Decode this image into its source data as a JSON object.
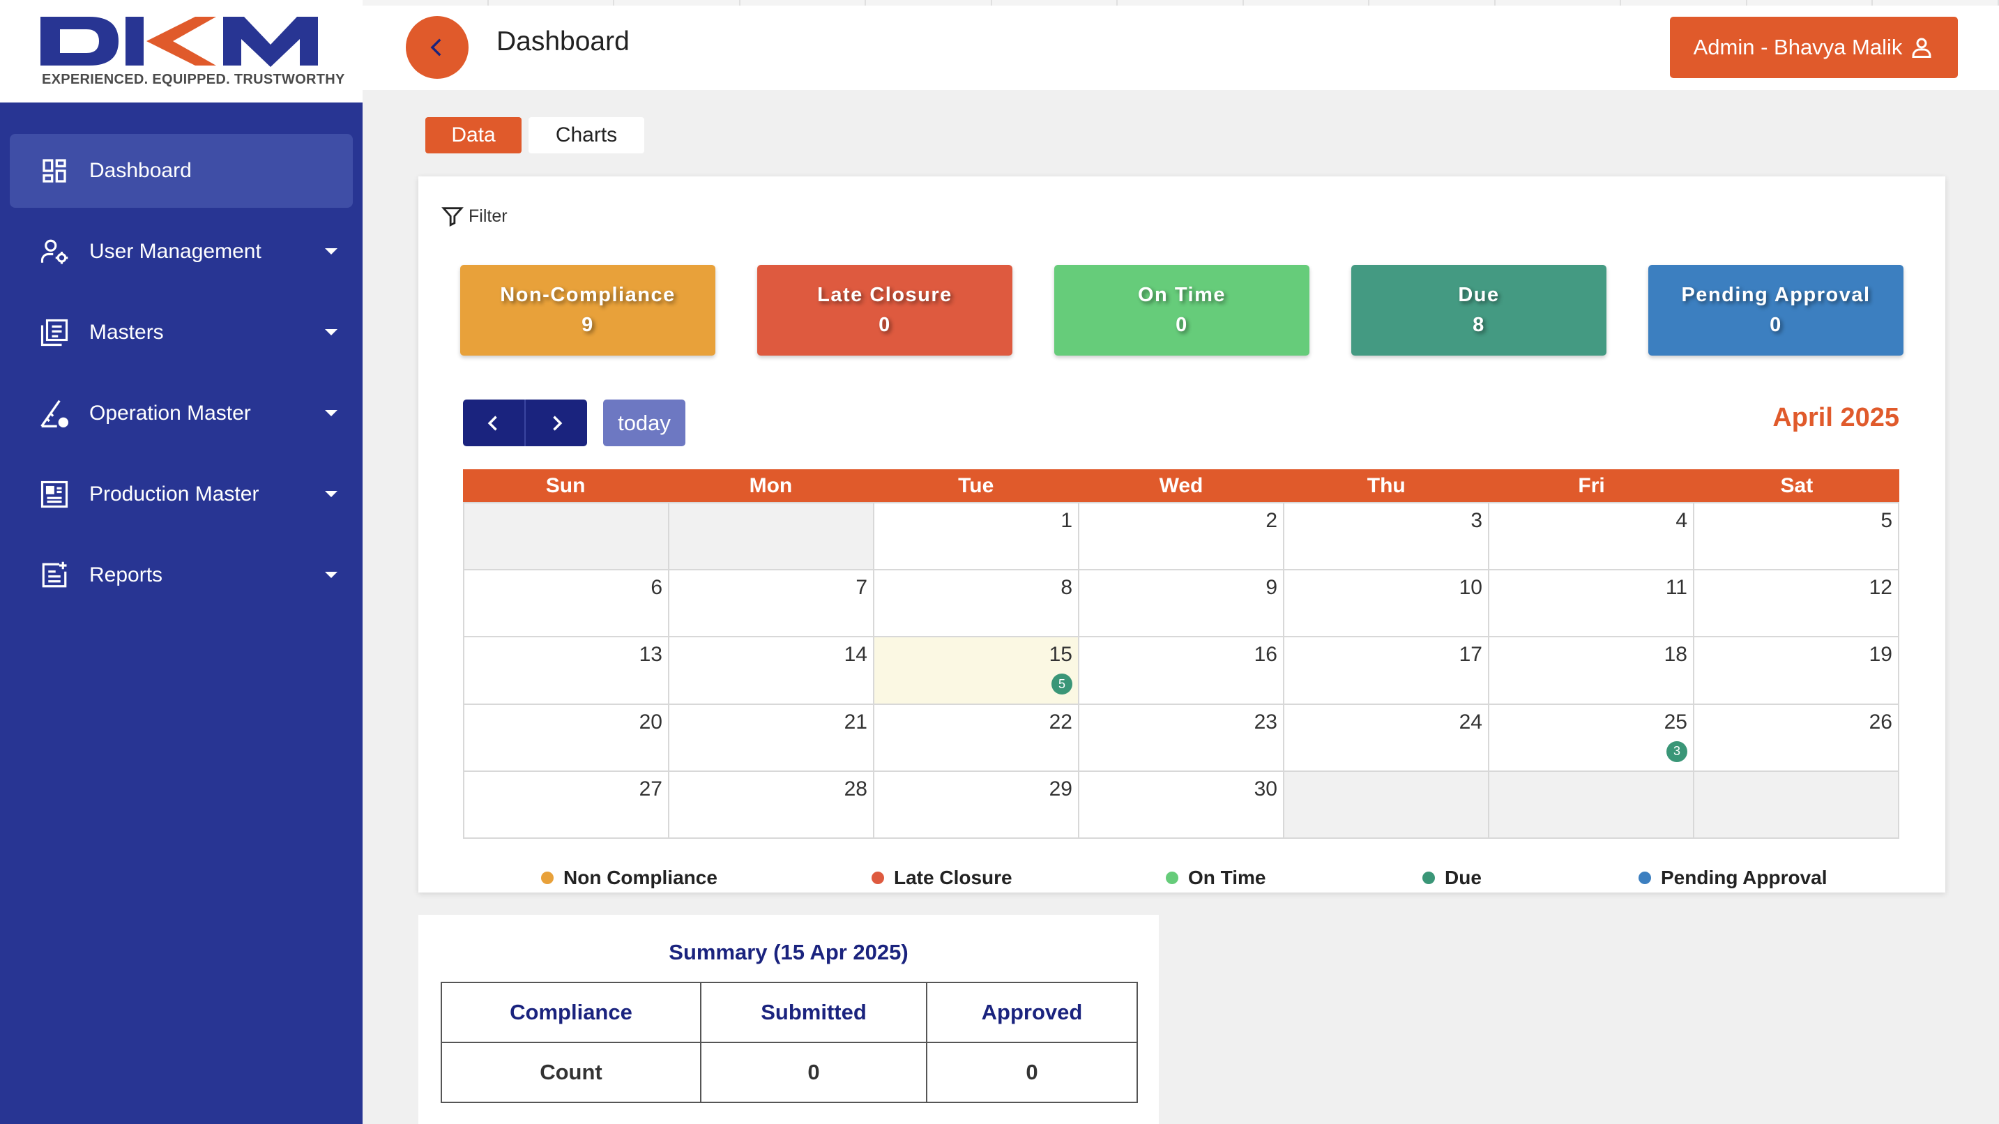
{
  "brand": {
    "logo_text": "DKM",
    "tagline": "EXPERIENCED. EQUIPPED. TRUSTWORTHY"
  },
  "header": {
    "title": "Dashboard",
    "admin_label": "Admin - Bhavya Malik"
  },
  "sidebar": {
    "items": [
      {
        "label": "Dashboard",
        "icon": "dashboard-icon",
        "active": true
      },
      {
        "label": "User Management",
        "icon": "user-settings-icon"
      },
      {
        "label": "Masters",
        "icon": "list-icon"
      },
      {
        "label": "Operation Master",
        "icon": "gear-ruler-icon"
      },
      {
        "label": "Production Master",
        "icon": "grid-icon"
      },
      {
        "label": "Reports",
        "icon": "report-icon"
      }
    ]
  },
  "tabs": {
    "data": "Data",
    "charts": "Charts"
  },
  "filter_label": "Filter",
  "stats": [
    {
      "label": "Non-Compliance",
      "value": "9",
      "color": "#e8a13a"
    },
    {
      "label": "Late Closure",
      "value": "0",
      "color": "#de5a3f"
    },
    {
      "label": "On Time",
      "value": "0",
      "color": "#66cc7a"
    },
    {
      "label": "Due",
      "value": "8",
      "color": "#449a82"
    },
    {
      "label": "Pending Approval",
      "value": "0",
      "color": "#3c7fc0"
    }
  ],
  "calendar": {
    "today_label": "today",
    "month_title": "April 2025",
    "weekdays": [
      "Sun",
      "Mon",
      "Tue",
      "Wed",
      "Thu",
      "Fri",
      "Sat"
    ],
    "cells": [
      {
        "day": "",
        "state": "other"
      },
      {
        "day": "",
        "state": "other"
      },
      {
        "day": "1"
      },
      {
        "day": "2"
      },
      {
        "day": "3"
      },
      {
        "day": "4"
      },
      {
        "day": "5"
      },
      {
        "day": "6"
      },
      {
        "day": "7"
      },
      {
        "day": "8"
      },
      {
        "day": "9"
      },
      {
        "day": "10"
      },
      {
        "day": "11"
      },
      {
        "day": "12"
      },
      {
        "day": "13"
      },
      {
        "day": "14"
      },
      {
        "day": "15",
        "state": "today",
        "badge": "5"
      },
      {
        "day": "16"
      },
      {
        "day": "17"
      },
      {
        "day": "18"
      },
      {
        "day": "19"
      },
      {
        "day": "20"
      },
      {
        "day": "21"
      },
      {
        "day": "22"
      },
      {
        "day": "23"
      },
      {
        "day": "24"
      },
      {
        "day": "25",
        "badge": "3"
      },
      {
        "day": "26"
      },
      {
        "day": "27"
      },
      {
        "day": "28"
      },
      {
        "day": "29"
      },
      {
        "day": "30"
      },
      {
        "day": "",
        "state": "other"
      },
      {
        "day": "",
        "state": "other"
      },
      {
        "day": "",
        "state": "other"
      }
    ]
  },
  "legend": [
    {
      "label": "Non Compliance",
      "color": "#e8a13a"
    },
    {
      "label": "Late Closure",
      "color": "#de5a3f"
    },
    {
      "label": "On Time",
      "color": "#66cc7a"
    },
    {
      "label": "Due",
      "color": "#3a9677"
    },
    {
      "label": "Pending Approval",
      "color": "#3c7fc0"
    }
  ],
  "summary": {
    "title": "Summary (15 Apr 2025)",
    "headers": [
      "Compliance",
      "Submitted",
      "Approved"
    ],
    "row": [
      "Count",
      "0",
      "0"
    ]
  }
}
